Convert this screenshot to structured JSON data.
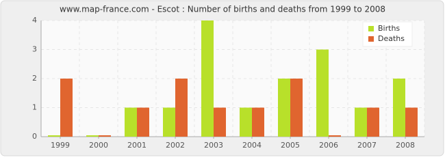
{
  "chart_data": {
    "type": "bar",
    "title": "www.map-france.com - Escot : Number of births and deaths from 1999 to 2008",
    "categories": [
      "1999",
      "2000",
      "2001",
      "2002",
      "2003",
      "2004",
      "2005",
      "2006",
      "2007",
      "2008"
    ],
    "series": [
      {
        "name": "Births",
        "color": "#b8e02a",
        "values": [
          0,
          0,
          1,
          1,
          4,
          1,
          2,
          3,
          1,
          2
        ]
      },
      {
        "name": "Deaths",
        "color": "#e0652f",
        "values": [
          2,
          0,
          1,
          2,
          1,
          1,
          2,
          0,
          1,
          1
        ]
      }
    ],
    "ylim": [
      0,
      4
    ],
    "yticks": [
      0,
      1,
      2,
      3,
      4
    ],
    "grid": true,
    "legend": "top-right"
  }
}
